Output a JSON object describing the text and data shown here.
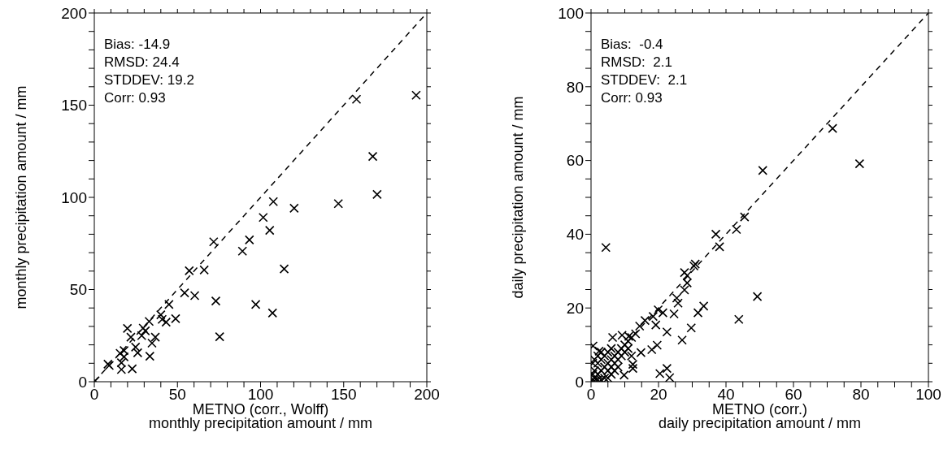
{
  "chart_data": [
    {
      "type": "scatter",
      "xlabel": "METNO (corr., Wolff)\nmonthly precipitation amount / mm",
      "ylabel": "monthly precipitation amount / mm",
      "annotations": [
        "Bias: -14.9",
        "RMSD: 24.4",
        "STDDEV: 19.2",
        "Corr: 0.93"
      ],
      "grid": false,
      "legend": false,
      "xlim": [
        0,
        200
      ],
      "ylim": [
        0,
        200
      ],
      "xticks": [
        0,
        {
          "value": 10,
          "label": null
        },
        {
          "value": 20,
          "label": null
        },
        {
          "value": 30,
          "label": null
        },
        {
          "value": 40,
          "label": null
        },
        50,
        {
          "value": 60,
          "label": null
        },
        {
          "value": 70,
          "label": null
        },
        {
          "value": 80,
          "label": null
        },
        {
          "value": 90,
          "label": null
        },
        100,
        {
          "value": 110,
          "label": null
        },
        {
          "value": 120,
          "label": null
        },
        {
          "value": 130,
          "label": null
        },
        {
          "value": 140,
          "label": null
        },
        150,
        {
          "value": 160,
          "label": null
        },
        {
          "value": 170,
          "label": null
        },
        {
          "value": 180,
          "label": null
        },
        {
          "value": 190,
          "label": null
        },
        200
      ],
      "yticks": [
        0,
        {
          "value": 10,
          "label": null
        },
        {
          "value": 20,
          "label": null
        },
        {
          "value": 30,
          "label": null
        },
        {
          "value": 40,
          "label": null
        },
        50,
        {
          "value": 60,
          "label": null
        },
        {
          "value": 70,
          "label": null
        },
        {
          "value": 80,
          "label": null
        },
        {
          "value": 90,
          "label": null
        },
        100,
        {
          "value": 110,
          "label": null
        },
        {
          "value": 120,
          "label": null
        },
        {
          "value": 130,
          "label": null
        },
        {
          "value": 140,
          "label": null
        },
        150,
        {
          "value": 160,
          "label": null
        },
        {
          "value": 170,
          "label": null
        },
        {
          "value": 180,
          "label": null
        },
        {
          "value": 190,
          "label": null
        },
        200
      ],
      "series": [
        {
          "color": "#000000",
          "marker": "cross",
          "x": [
            193.6,
            157.7,
            167.5,
            170.1,
            146.8,
            107.7,
            120.2,
            101.6,
            105.5,
            93.3,
            89.1,
            71.8,
            114.2,
            57.1,
            66.1,
            54.3,
            60.4,
            73.1,
            97.1,
            107.2,
            75.4,
            44.9,
            40,
            48.9,
            43.2,
            40.8,
            33,
            29.4,
            19.9,
            30.7,
            22,
            28.5,
            36.7,
            34.7,
            24.8,
            26.1,
            33.4,
            17.9,
            15.5,
            17.9,
            16.3,
            16.3,
            22.8,
            9,
            8.2,
            0.5
          ],
          "values": [
            155.4,
            153.2,
            122.2,
            101.6,
            96.6,
            97.7,
            94.1,
            89.1,
            82.1,
            76.9,
            70.8,
            75.9,
            61.2,
            60.2,
            60.6,
            48.2,
            46.7,
            43.8,
            41.9,
            37.3,
            24.4,
            41.9,
            36.3,
            34.2,
            32.3,
            33.8,
            32.7,
            29.1,
            28.9,
            27.6,
            24.2,
            25,
            24.2,
            20.9,
            18.8,
            15.7,
            13.8,
            16.9,
            15.4,
            13.5,
            10.3,
            6.6,
            7,
            8.8,
            9.5,
            0.5
          ]
        },
        {
          "type": "line",
          "color": "#000000",
          "line_style": "dashed",
          "x": [
            0,
            200
          ],
          "values": [
            0,
            200
          ]
        }
      ]
    },
    {
      "type": "scatter",
      "xlabel": "METNO (corr.)\ndaily precipitation amount / mm",
      "ylabel": "daily precipitation amount / mm",
      "annotations": [
        "Bias:  -0.4",
        "RMSD:  2.1",
        "STDDEV:  2.1",
        "Corr: 0.93"
      ],
      "grid": false,
      "legend": false,
      "xlim": [
        0,
        100
      ],
      "ylim": [
        0,
        100
      ],
      "xticks": [
        0,
        {
          "value": 5,
          "label": null
        },
        {
          "value": 10,
          "label": null
        },
        {
          "value": 15,
          "label": null
        },
        20,
        {
          "value": 25,
          "label": null
        },
        {
          "value": 30,
          "label": null
        },
        {
          "value": 35,
          "label": null
        },
        40,
        {
          "value": 45,
          "label": null
        },
        {
          "value": 50,
          "label": null
        },
        {
          "value": 55,
          "label": null
        },
        60,
        {
          "value": 65,
          "label": null
        },
        {
          "value": 70,
          "label": null
        },
        {
          "value": 75,
          "label": null
        },
        80,
        {
          "value": 85,
          "label": null
        },
        {
          "value": 90,
          "label": null
        },
        {
          "value": 95,
          "label": null
        },
        100
      ],
      "yticks": [
        0,
        {
          "value": 5,
          "label": null
        },
        {
          "value": 10,
          "label": null
        },
        {
          "value": 15,
          "label": null
        },
        20,
        {
          "value": 25,
          "label": null
        },
        {
          "value": 30,
          "label": null
        },
        {
          "value": 35,
          "label": null
        },
        40,
        {
          "value": 45,
          "label": null
        },
        {
          "value": 50,
          "label": null
        },
        {
          "value": 55,
          "label": null
        },
        60,
        {
          "value": 65,
          "label": null
        },
        {
          "value": 70,
          "label": null
        },
        {
          "value": 75,
          "label": null
        },
        80,
        {
          "value": 85,
          "label": null
        },
        {
          "value": 90,
          "label": null
        },
        {
          "value": 95,
          "label": null
        },
        100
      ],
      "series": [
        {
          "color": "#000000",
          "marker": "cross",
          "x": [
            71.6,
            79.6,
            50.9,
            45.5,
            43.1,
            37,
            38.1,
            4.4,
            30.9,
            30.5,
            27.7,
            28.5,
            28.5,
            27.7,
            49.3,
            25.4,
            25.8,
            33.4,
            31.7,
            24.6,
            21.3,
            19.9,
            18.4,
            43.8,
            16,
            14.4,
            19.2,
            29.7,
            22.5,
            27,
            13.2,
            6.4,
            9.2,
            11.2,
            19.6,
            18,
            14.8,
            2.4,
            0.6,
            12.4,
            12.4,
            9.8,
            20.4,
            22.5,
            23.3,
            1,
            2,
            3,
            4,
            5,
            6,
            7,
            8,
            9,
            10,
            11,
            12,
            1,
            2,
            3,
            5,
            6,
            7,
            8,
            9,
            4,
            2,
            0.5,
            1,
            3,
            5,
            6,
            7,
            8,
            10,
            11,
            12,
            0.3,
            0.5,
            1,
            2,
            3,
            4,
            5,
            6
          ],
          "values": [
            68.7,
            59.1,
            57.3,
            44.7,
            41.3,
            40,
            36.6,
            36.4,
            31.9,
            31.4,
            29.6,
            28.8,
            26.8,
            24.9,
            23.1,
            22.7,
            21.3,
            20.5,
            18.7,
            18.4,
            18.7,
            19.5,
            17.7,
            16.9,
            16.6,
            15.1,
            15.4,
            14.6,
            13.5,
            11.3,
            13,
            12,
            12.6,
            12.3,
            9.9,
            8.7,
            7.9,
            8.3,
            9.7,
            4.7,
            3.6,
            1.8,
            2.2,
            3.6,
            1.1,
            1,
            2,
            3,
            4,
            5,
            6,
            7,
            8,
            9,
            10,
            11,
            12,
            3,
            5,
            6,
            3,
            4,
            5,
            6,
            7,
            1,
            0.5,
            2,
            0.2,
            0.5,
            1,
            2,
            3,
            4,
            8,
            9,
            7,
            0.3,
            5,
            6,
            7,
            8,
            7,
            8,
            9
          ]
        },
        {
          "type": "line",
          "color": "#000000",
          "line_style": "dashed",
          "x": [
            0,
            100
          ],
          "values": [
            0,
            100
          ]
        }
      ]
    }
  ]
}
